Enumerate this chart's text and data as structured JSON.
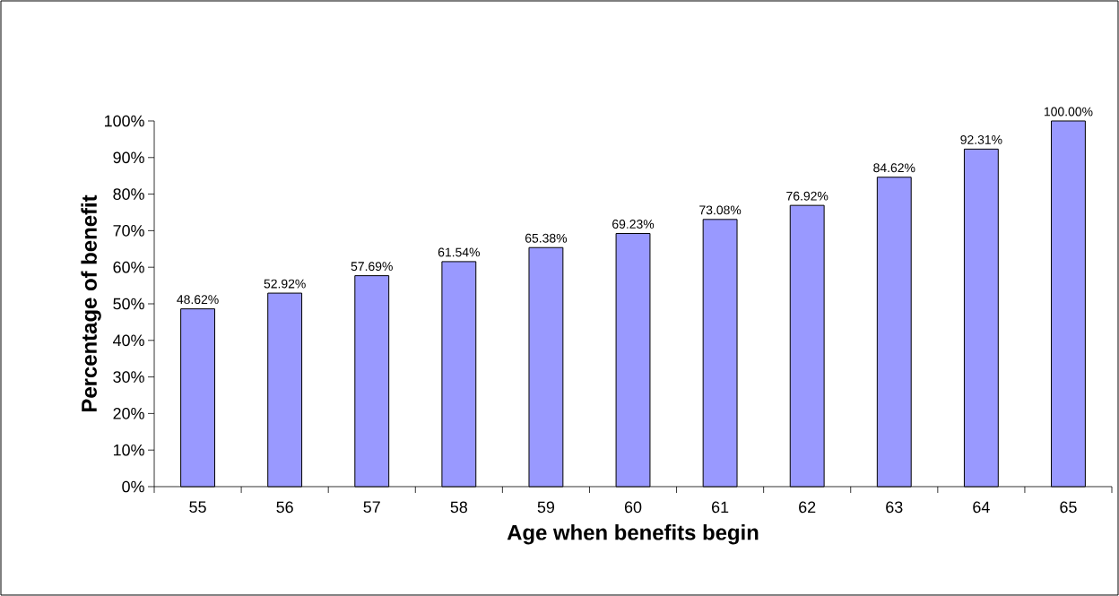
{
  "chart_data": {
    "type": "bar",
    "xlabel": "Age when benefits begin",
    "ylabel": "Percentage of benefit",
    "categories": [
      "55",
      "56",
      "57",
      "58",
      "59",
      "60",
      "61",
      "62",
      "63",
      "64",
      "65"
    ],
    "values": [
      48.62,
      52.92,
      57.69,
      61.54,
      65.38,
      69.23,
      73.08,
      76.92,
      84.62,
      92.31,
      100.0
    ],
    "value_labels": [
      "48.62%",
      "52.92%",
      "57.69%",
      "61.54%",
      "65.38%",
      "69.23%",
      "73.08%",
      "76.92%",
      "84.62%",
      "92.31%",
      "100.00%"
    ],
    "color": "#9999ff",
    "ylim": [
      0,
      100
    ],
    "yticks": [
      {
        "value": 0,
        "label": "0%"
      },
      {
        "value": 10,
        "label": "10%"
      },
      {
        "value": 20,
        "label": "20%"
      },
      {
        "value": 30,
        "label": "30%"
      },
      {
        "value": 40,
        "label": "40%"
      },
      {
        "value": 50,
        "label": "50%"
      },
      {
        "value": 60,
        "label": "60%"
      },
      {
        "value": 70,
        "label": "70%"
      },
      {
        "value": 80,
        "label": "80%"
      },
      {
        "value": 90,
        "label": "90%"
      },
      {
        "value": 100,
        "label": "100%"
      }
    ]
  }
}
